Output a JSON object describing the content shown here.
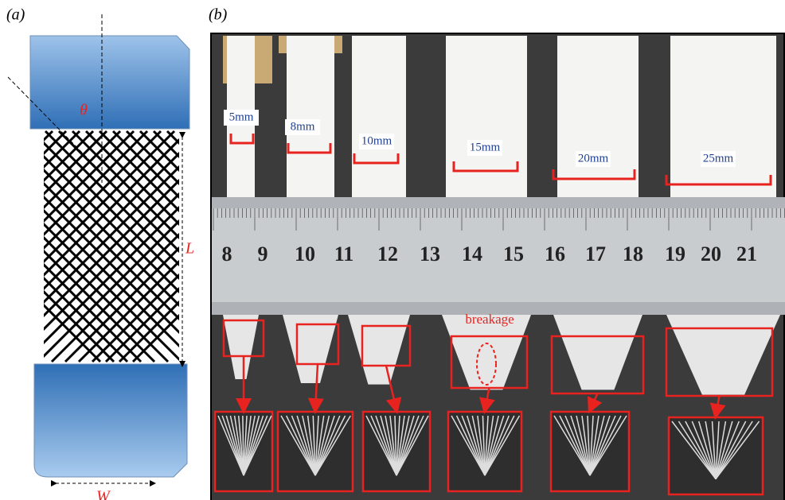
{
  "panel_a": {
    "label": "(a)",
    "angle": "θ",
    "length": "L",
    "width": "W"
  },
  "panel_b": {
    "label": "(b)",
    "widths": [
      "5mm",
      "8mm",
      "10mm",
      "15mm",
      "20mm",
      "25mm"
    ],
    "ruler_numbers": [
      "8",
      "9",
      "10",
      "11",
      "12",
      "13",
      "14",
      "15",
      "16",
      "17",
      "18",
      "19",
      "20",
      "21"
    ],
    "annotation": "breakage"
  }
}
